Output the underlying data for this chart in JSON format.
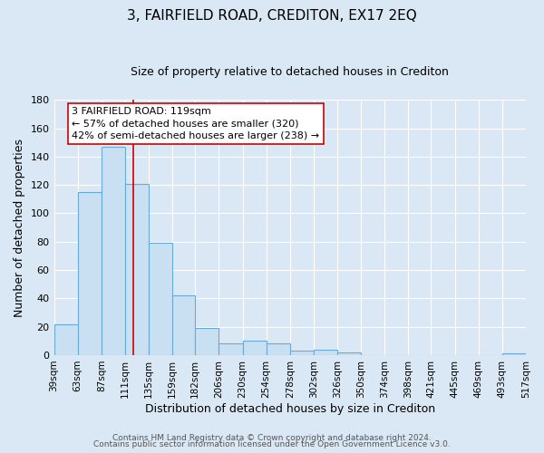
{
  "title": "3, FAIRFIELD ROAD, CREDITON, EX17 2EQ",
  "subtitle": "Size of property relative to detached houses in Crediton",
  "xlabel": "Distribution of detached houses by size in Crediton",
  "ylabel": "Number of detached properties",
  "bin_edges": [
    39,
    63,
    87,
    111,
    135,
    159,
    182,
    206,
    230,
    254,
    278,
    302,
    326,
    350,
    374,
    398,
    421,
    445,
    469,
    493,
    517
  ],
  "bar_heights": [
    22,
    115,
    147,
    121,
    79,
    42,
    19,
    8,
    10,
    8,
    3,
    4,
    2,
    0,
    0,
    0,
    0,
    0,
    0,
    1
  ],
  "bar_color": "#c9dff2",
  "bar_edge_color": "#6aaad4",
  "tick_labels": [
    "39sqm",
    "63sqm",
    "87sqm",
    "111sqm",
    "135sqm",
    "159sqm",
    "182sqm",
    "206sqm",
    "230sqm",
    "254sqm",
    "278sqm",
    "302sqm",
    "326sqm",
    "350sqm",
    "374sqm",
    "398sqm",
    "421sqm",
    "445sqm",
    "469sqm",
    "493sqm",
    "517sqm"
  ],
  "vline_x": 119,
  "vline_color": "#cc0000",
  "ylim": [
    0,
    180
  ],
  "yticks": [
    0,
    20,
    40,
    60,
    80,
    100,
    120,
    140,
    160,
    180
  ],
  "annotation_line1": "3 FAIRFIELD ROAD: 119sqm",
  "annotation_line2": "← 57% of detached houses are smaller (320)",
  "annotation_line3": "42% of semi-detached houses are larger (238) →",
  "annotation_box_color": "#ffffff",
  "annotation_box_edge_color": "#cc0000",
  "footer_line1": "Contains HM Land Registry data © Crown copyright and database right 2024.",
  "footer_line2": "Contains public sector information licensed under the Open Government Licence v3.0.",
  "bg_color": "#dae8f5",
  "plot_bg_color": "#dae8f5",
  "grid_color": "#ffffff",
  "title_fontsize": 11,
  "subtitle_fontsize": 9,
  "ylabel_fontsize": 9,
  "xlabel_fontsize": 9,
  "tick_fontsize": 7.5,
  "ytick_fontsize": 8,
  "annotation_fontsize": 8,
  "footer_fontsize": 6.5
}
